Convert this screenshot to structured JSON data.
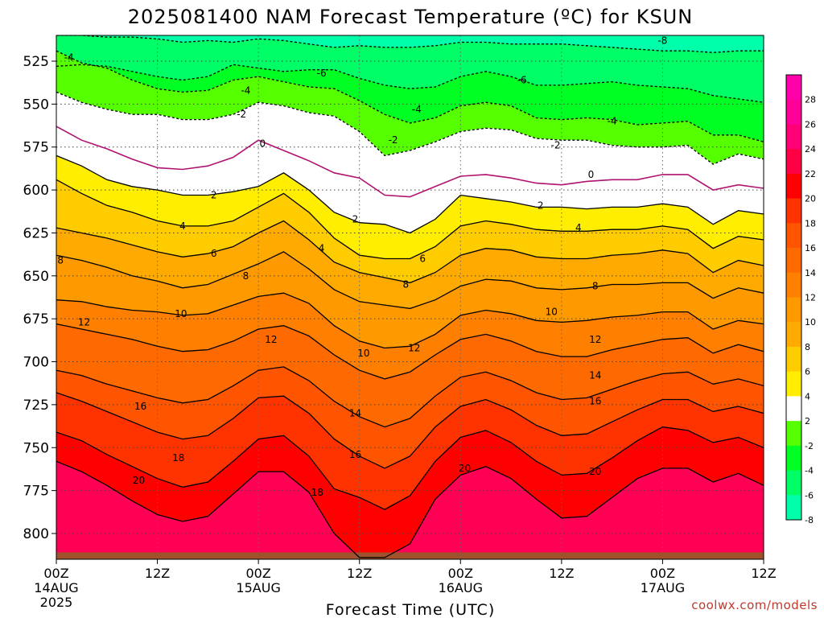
{
  "chart_data": {
    "type": "area",
    "title": "2025081400 NAM Forecast Temperature (ºC) for KSUN",
    "xlabel": "Forecast Time (UTC)",
    "ylabel": "",
    "ylim": [
      815,
      510
    ],
    "y_ticks": [
      525,
      550,
      575,
      600,
      625,
      650,
      675,
      700,
      725,
      750,
      775,
      800
    ],
    "x_ticks": [
      {
        "hour": 0,
        "label": "00Z",
        "sub": "14AUG",
        "year": "2025"
      },
      {
        "hour": 12,
        "label": "12Z",
        "sub": "",
        "year": ""
      },
      {
        "hour": 24,
        "label": "00Z",
        "sub": "15AUG",
        "year": ""
      },
      {
        "hour": 36,
        "label": "12Z",
        "sub": "",
        "year": ""
      },
      {
        "hour": 48,
        "label": "00Z",
        "sub": "16AUG",
        "year": ""
      },
      {
        "hour": 60,
        "label": "12Z",
        "sub": "",
        "year": ""
      },
      {
        "hour": 72,
        "label": "00Z",
        "sub": "17AUG",
        "year": ""
      },
      {
        "hour": 84,
        "label": "12Z",
        "sub": "",
        "year": ""
      }
    ],
    "x": [
      0,
      3,
      6,
      9,
      12,
      15,
      18,
      21,
      24,
      27,
      30,
      33,
      36,
      39,
      42,
      45,
      48,
      51,
      54,
      57,
      60,
      63,
      66,
      69,
      72,
      75,
      78,
      81,
      84
    ],
    "isotherms": [
      {
        "level": -8,
        "p": [
          510,
          510,
          511,
          511,
          512,
          514,
          513,
          514,
          512,
          513,
          515,
          517,
          516,
          517,
          517,
          516,
          514,
          514,
          515,
          515,
          515,
          516,
          517,
          518,
          519,
          519,
          520,
          519,
          519
        ]
      },
      {
        "level": -6,
        "p": [
          528,
          527,
          528,
          531,
          534,
          536,
          534,
          527,
          529,
          531,
          530,
          530,
          535,
          539,
          541,
          540,
          534,
          531,
          534,
          539,
          539,
          538,
          537,
          539,
          540,
          541,
          545,
          547,
          549
        ]
      },
      {
        "level": -4,
        "p": [
          519,
          526,
          529,
          536,
          541,
          543,
          542,
          536,
          534,
          537,
          540,
          541,
          548,
          556,
          561,
          558,
          551,
          549,
          551,
          558,
          559,
          558,
          559,
          562,
          561,
          560,
          568,
          568,
          572
        ]
      },
      {
        "level": -2,
        "p": [
          543,
          549,
          553,
          556,
          556,
          559,
          559,
          556,
          549,
          551,
          555,
          557,
          566,
          580,
          577,
          572,
          566,
          564,
          565,
          570,
          571,
          571,
          574,
          575,
          575,
          574,
          585,
          579,
          582
        ]
      },
      {
        "level": 0,
        "p": [
          563,
          571,
          576,
          582,
          587,
          588,
          586,
          581,
          571,
          577,
          583,
          590,
          593,
          603,
          604,
          598,
          592,
          591,
          593,
          596,
          597,
          595,
          594,
          594,
          591,
          591,
          600,
          597,
          599
        ]
      },
      {
        "level": 2,
        "p": [
          580,
          586,
          594,
          598,
          600,
          603,
          603,
          601,
          598,
          590,
          600,
          613,
          619,
          620,
          625,
          617,
          603,
          605,
          607,
          610,
          610,
          611,
          610,
          610,
          608,
          610,
          620,
          612,
          614
        ]
      },
      {
        "level": 4,
        "p": [
          594,
          602,
          609,
          613,
          618,
          621,
          621,
          618,
          610,
          602,
          613,
          628,
          638,
          640,
          640,
          633,
          621,
          618,
          620,
          623,
          624,
          624,
          623,
          623,
          621,
          623,
          634,
          627,
          629
        ]
      },
      {
        "level": 6,
        "p": [
          622,
          625,
          628,
          632,
          636,
          639,
          637,
          633,
          625,
          618,
          629,
          642,
          648,
          651,
          654,
          648,
          638,
          634,
          635,
          639,
          640,
          640,
          638,
          637,
          635,
          637,
          648,
          641,
          644
        ]
      },
      {
        "level": 8,
        "p": [
          638,
          641,
          645,
          650,
          653,
          657,
          655,
          649,
          643,
          636,
          646,
          658,
          665,
          667,
          669,
          664,
          656,
          652,
          653,
          657,
          658,
          657,
          655,
          655,
          654,
          654,
          663,
          657,
          660
        ]
      },
      {
        "level": 10,
        "p": [
          664,
          665,
          668,
          670,
          671,
          673,
          672,
          667,
          662,
          660,
          666,
          679,
          688,
          692,
          691,
          684,
          673,
          670,
          672,
          676,
          677,
          676,
          674,
          673,
          671,
          671,
          681,
          676,
          678
        ]
      },
      {
        "level": 12,
        "p": [
          678,
          681,
          684,
          687,
          691,
          694,
          693,
          688,
          681,
          679,
          685,
          696,
          705,
          710,
          706,
          696,
          687,
          684,
          688,
          694,
          697,
          697,
          693,
          690,
          687,
          686,
          695,
          690,
          694
        ]
      },
      {
        "level": 14,
        "p": [
          705,
          708,
          713,
          717,
          721,
          724,
          722,
          714,
          705,
          703,
          711,
          723,
          732,
          738,
          733,
          720,
          709,
          706,
          711,
          718,
          722,
          721,
          716,
          711,
          707,
          706,
          713,
          710,
          714
        ]
      },
      {
        "level": 16,
        "p": [
          718,
          723,
          729,
          735,
          741,
          745,
          743,
          733,
          721,
          720,
          730,
          745,
          755,
          762,
          755,
          738,
          726,
          722,
          728,
          737,
          743,
          742,
          735,
          728,
          722,
          722,
          729,
          726,
          730
        ]
      },
      {
        "level": 18,
        "p": [
          741,
          746,
          754,
          761,
          768,
          773,
          770,
          758,
          745,
          743,
          755,
          774,
          779,
          786,
          778,
          758,
          744,
          740,
          747,
          758,
          766,
          765,
          756,
          746,
          738,
          740,
          747,
          744,
          750
        ]
      },
      {
        "level": 20,
        "p": [
          758,
          764,
          772,
          781,
          789,
          793,
          790,
          777,
          764,
          764,
          776,
          800,
          814,
          814,
          806,
          780,
          766,
          761,
          768,
          780,
          791,
          790,
          779,
          768,
          762,
          762,
          770,
          765,
          772
        ]
      }
    ],
    "contour_labels": [
      {
        "text": "-8",
        "x": 72.0,
        "p": 513
      },
      {
        "text": "-6",
        "x": 31.5,
        "p": 532
      },
      {
        "text": "-6",
        "x": 55.3,
        "p": 536
      },
      {
        "text": "-4",
        "x": 1.5,
        "p": 523
      },
      {
        "text": "-4",
        "x": 22.5,
        "p": 542
      },
      {
        "text": "-4",
        "x": 42.8,
        "p": 553
      },
      {
        "text": "-4",
        "x": 66.0,
        "p": 560
      },
      {
        "text": "-2",
        "x": 22.0,
        "p": 556
      },
      {
        "text": "-2",
        "x": 40.0,
        "p": 571
      },
      {
        "text": "-2",
        "x": 59.3,
        "p": 574
      },
      {
        "text": "0",
        "x": 24.5,
        "p": 573
      },
      {
        "text": "0",
        "x": 63.5,
        "p": 591
      },
      {
        "text": "2",
        "x": 18.7,
        "p": 603
      },
      {
        "text": "2",
        "x": 35.5,
        "p": 617
      },
      {
        "text": "2",
        "x": 57.5,
        "p": 609
      },
      {
        "text": "4",
        "x": 15.0,
        "p": 621
      },
      {
        "text": "4",
        "x": 31.5,
        "p": 634
      },
      {
        "text": "4",
        "x": 62.0,
        "p": 622
      },
      {
        "text": "6",
        "x": 18.7,
        "p": 637
      },
      {
        "text": "6",
        "x": 43.5,
        "p": 640
      },
      {
        "text": "8",
        "x": 0.5,
        "p": 641
      },
      {
        "text": "8",
        "x": 22.5,
        "p": 650
      },
      {
        "text": "8",
        "x": 41.5,
        "p": 655
      },
      {
        "text": "8",
        "x": 64.0,
        "p": 656
      },
      {
        "text": "10",
        "x": 14.8,
        "p": 672
      },
      {
        "text": "10",
        "x": 36.5,
        "p": 695
      },
      {
        "text": "10",
        "x": 58.8,
        "p": 671
      },
      {
        "text": "12",
        "x": 3.3,
        "p": 677
      },
      {
        "text": "12",
        "x": 25.5,
        "p": 687
      },
      {
        "text": "12",
        "x": 42.5,
        "p": 692
      },
      {
        "text": "12",
        "x": 64.0,
        "p": 687
      },
      {
        "text": "14",
        "x": 35.5,
        "p": 730
      },
      {
        "text": "14",
        "x": 64.0,
        "p": 708
      },
      {
        "text": "16",
        "x": 10.0,
        "p": 726
      },
      {
        "text": "16",
        "x": 35.5,
        "p": 754
      },
      {
        "text": "16",
        "x": 64.0,
        "p": 723
      },
      {
        "text": "18",
        "x": 14.5,
        "p": 756
      },
      {
        "text": "18",
        "x": 31.0,
        "p": 776
      },
      {
        "text": "20",
        "x": 9.8,
        "p": 769
      },
      {
        "text": "20",
        "x": 48.5,
        "p": 762
      },
      {
        "text": "20",
        "x": 64.0,
        "p": 764
      }
    ],
    "color_scale": [
      {
        "level": "28",
        "color": "#ff00aa"
      },
      {
        "level": "26",
        "color": "#ff0099"
      },
      {
        "level": "24",
        "color": "#ff0077"
      },
      {
        "level": "22",
        "color": "#ff0044"
      },
      {
        "level": "20",
        "color": "#ff0000"
      },
      {
        "level": "18",
        "color": "#ff3300"
      },
      {
        "level": "16",
        "color": "#ff5500"
      },
      {
        "level": "14",
        "color": "#ff6a00"
      },
      {
        "level": "12",
        "color": "#ff7f00"
      },
      {
        "level": "10",
        "color": "#ff9900"
      },
      {
        "level": "8",
        "color": "#ffaa00"
      },
      {
        "level": "6",
        "color": "#ffcc00"
      },
      {
        "level": "4",
        "color": "#ffee00"
      },
      {
        "level": "2",
        "color": "#ffffff"
      },
      {
        "level": "-2",
        "color": "#55ff00"
      },
      {
        "level": "-4",
        "color": "#00ff22"
      },
      {
        "level": "-6",
        "color": "#00ff66"
      },
      {
        "level": "-8",
        "color": "#00ffaa"
      }
    ],
    "band_colors": {
      "below_-8": "#00ffaa",
      "-8_-6": "#00ff66",
      "-6_-4": "#00ff22",
      "-4_-2": "#55ff00",
      "-2_0": "#ffffff",
      "0_2": "#ffffff",
      "2_4": "#ffee00",
      "4_6": "#ffcc00",
      "6_8": "#ffaa00",
      "8_10": "#ff9900",
      "10_12": "#ff7f00",
      "12_14": "#ff6a00",
      "14_16": "#ff5500",
      "16_18": "#ff3300",
      "18_20": "#ff0000",
      "above_20": "#ff0055"
    },
    "ground_color": "#a0522d",
    "grid": true
  },
  "credit": "coolwx.com/models"
}
